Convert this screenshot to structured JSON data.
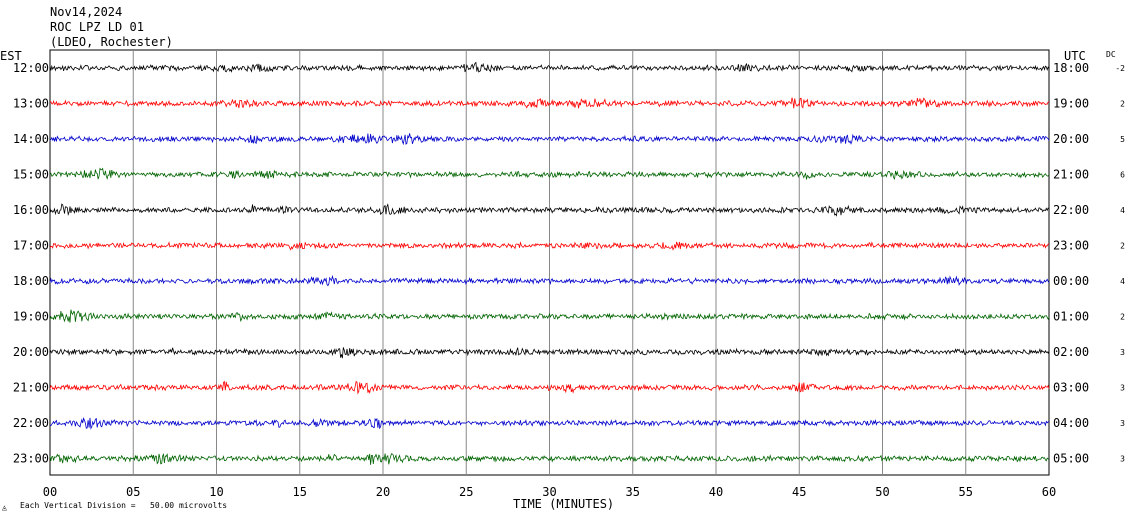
{
  "header": {
    "date": "Nov14,2024",
    "station": "ROC LPZ LD 01",
    "network": "(LDEO, Rochester)"
  },
  "left_tz": "EST",
  "right_tz": "UTC",
  "dc_label": "DC",
  "footer": {
    "division_note": "Each Vertical Division =   50.00 microvolts"
  },
  "chart_data": {
    "type": "line",
    "title": "",
    "xlabel": "TIME (MINUTES)",
    "ylabel": "",
    "xlim": [
      0,
      60
    ],
    "x_ticks": [
      "00",
      "05",
      "10",
      "15",
      "20",
      "25",
      "30",
      "35",
      "40",
      "45",
      "50",
      "55",
      "60"
    ],
    "grid": "vertical lines every 5 minutes",
    "colors": [
      "#000000",
      "#ff0000",
      "#0000cc",
      "#006400"
    ],
    "rows": [
      {
        "est": "12:00",
        "utc": "18:00",
        "dc": "-2",
        "color": "#000000"
      },
      {
        "est": "13:00",
        "utc": "19:00",
        "dc": "2",
        "color": "#ff0000"
      },
      {
        "est": "14:00",
        "utc": "20:00",
        "dc": "5",
        "color": "#0000cc"
      },
      {
        "est": "15:00",
        "utc": "21:00",
        "dc": "6",
        "color": "#006400"
      },
      {
        "est": "16:00",
        "utc": "22:00",
        "dc": "4",
        "color": "#000000"
      },
      {
        "est": "17:00",
        "utc": "23:00",
        "dc": "2",
        "color": "#ff0000"
      },
      {
        "est": "18:00",
        "utc": "00:00",
        "dc": "4",
        "color": "#0000cc"
      },
      {
        "est": "19:00",
        "utc": "01:00",
        "dc": "2",
        "color": "#006400"
      },
      {
        "est": "20:00",
        "utc": "02:00",
        "dc": "3",
        "color": "#000000"
      },
      {
        "est": "21:00",
        "utc": "03:00",
        "dc": "3",
        "color": "#ff0000"
      },
      {
        "est": "22:00",
        "utc": "04:00",
        "dc": "3",
        "color": "#0000cc"
      },
      {
        "est": "23:00",
        "utc": "05:00",
        "dc": "3",
        "color": "#006400"
      }
    ]
  }
}
